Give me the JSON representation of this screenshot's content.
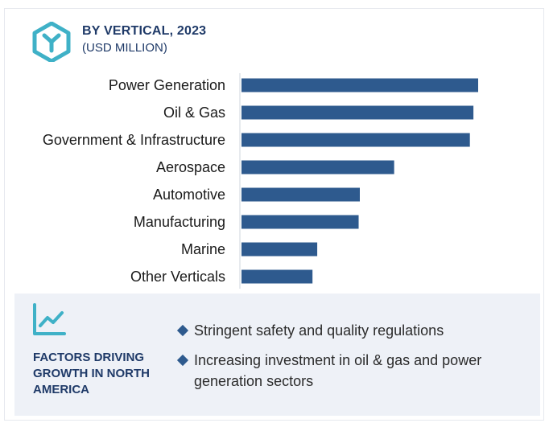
{
  "header": {
    "title": "BY VERTICAL, 2023",
    "subtitle": "(USD MILLION)",
    "icon": "hexagon-y-icon"
  },
  "colors": {
    "bar": "#2e5a8e",
    "accent": "#3fb1c7",
    "heading": "#1f3a68",
    "panel_bg": "#eef1f7"
  },
  "chart_data": {
    "type": "bar",
    "orientation": "horizontal",
    "categories": [
      "Power Generation",
      "Oil & Gas",
      "Government & Infrastructure",
      "Aerospace",
      "Automotive",
      "Manufacturing",
      "Marine",
      "Other Verticals"
    ],
    "values": [
      100,
      98,
      96.5,
      64.5,
      50,
      49.5,
      32,
      30
    ],
    "title": "BY VERTICAL, 2023",
    "subtitle": "(USD MILLION)",
    "xlabel": "",
    "ylabel": "",
    "grid": false,
    "legend": "none"
  },
  "factors": {
    "icon": "trend-line-icon",
    "title": "FACTORS DRIVING GROWTH IN NORTH AMERICA",
    "items": [
      "Stringent safety and quality regulations",
      "Increasing investment in oil & gas and power generation sectors"
    ]
  }
}
